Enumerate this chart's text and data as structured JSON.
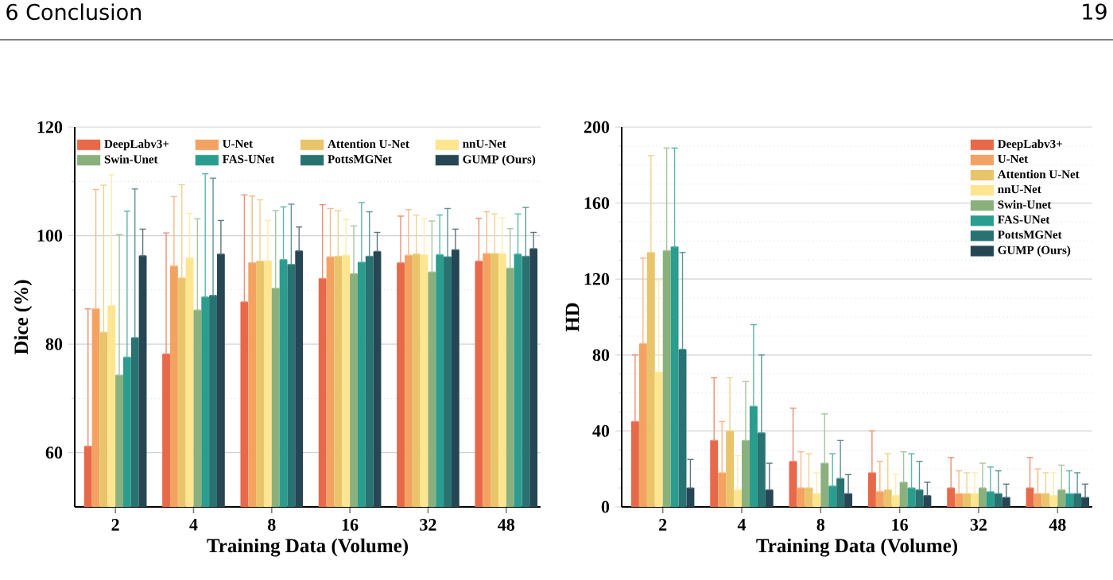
{
  "chart_data": [
    {
      "type": "bar",
      "xlabel": "Training Data (Volume)",
      "ylabel": "Dice (%)",
      "annotations": [
        "6 Conclusion",
        "19"
      ],
      "categories": [
        "2",
        "4",
        "8",
        "16",
        "32",
        "48"
      ],
      "ylim": [
        50,
        120
      ],
      "yticks": [
        60,
        80,
        100,
        120
      ],
      "grid": "y",
      "legend": "top",
      "series": [
        {
          "name": "DeepLabv3+",
          "color": "#e8684a",
          "values": [
            61.2,
            78.2,
            87.8,
            92.1,
            95.0,
            95.3
          ],
          "errors": [
            [
              61.2,
              86.5
            ],
            [
              78.2,
              100.5
            ],
            [
              87.8,
              107.5
            ],
            [
              92.1,
              105.7
            ],
            [
              95.0,
              103.6
            ],
            [
              95.3,
              103.2
            ]
          ]
        },
        {
          "name": "U-Net",
          "color": "#f4a261",
          "values": [
            86.5,
            94.4,
            95.0,
            96.1,
            96.4,
            96.7
          ],
          "errors": [
            [
              86.5,
              108.5
            ],
            [
              94.4,
              107.2
            ],
            [
              95.0,
              107.3
            ],
            [
              96.1,
              105.0
            ],
            [
              96.4,
              104.8
            ],
            [
              96.7,
              104.4
            ]
          ]
        },
        {
          "name": "Attention U-Net",
          "color": "#e9c46a",
          "values": [
            82.2,
            92.2,
            95.3,
            96.2,
            96.6,
            96.7
          ],
          "errors": [
            [
              82.2,
              109.3
            ],
            [
              92.2,
              109.4
            ],
            [
              95.3,
              106.6
            ],
            [
              96.2,
              104.6
            ],
            [
              96.6,
              103.8
            ],
            [
              96.7,
              104.0
            ]
          ]
        },
        {
          "name": "nnU-Net",
          "color": "#fee58f",
          "values": [
            87.1,
            95.9,
            95.4,
            96.4,
            96.5,
            96.7
          ],
          "errors": [
            [
              87.1,
              111.2
            ],
            [
              95.9,
              104.1
            ],
            [
              95.4,
              102.8
            ],
            [
              96.4,
              103.0
            ],
            [
              96.5,
              103.1
            ],
            [
              96.7,
              103.3
            ]
          ]
        },
        {
          "name": "Swin-Unet",
          "color": "#8ab17d",
          "values": [
            74.3,
            86.3,
            90.3,
            93.0,
            93.3,
            94.0
          ],
          "errors": [
            [
              74.3,
              100.2
            ],
            [
              86.3,
              103.1
            ],
            [
              90.3,
              104.6
            ],
            [
              93.0,
              101.8
            ],
            [
              93.3,
              102.7
            ],
            [
              94.0,
              101.3
            ]
          ]
        },
        {
          "name": "FAS-UNet",
          "color": "#2a9d8f",
          "values": [
            77.6,
            88.7,
            95.6,
            95.1,
            96.5,
            96.6
          ],
          "errors": [
            [
              77.6,
              104.5
            ],
            [
              88.7,
              111.4
            ],
            [
              95.6,
              105.3
            ],
            [
              95.1,
              106.1
            ],
            [
              96.5,
              103.8
            ],
            [
              96.6,
              104.0
            ]
          ]
        },
        {
          "name": "PottsMGNet",
          "color": "#287271",
          "values": [
            81.2,
            89.0,
            94.7,
            96.2,
            96.1,
            96.2
          ],
          "errors": [
            [
              81.2,
              108.6
            ],
            [
              89.0,
              110.6
            ],
            [
              94.7,
              105.8
            ],
            [
              96.2,
              104.4
            ],
            [
              96.1,
              105.0
            ],
            [
              96.2,
              105.2
            ]
          ]
        },
        {
          "name": "GUMP (Ours)",
          "color": "#264653",
          "values": [
            96.3,
            96.6,
            97.2,
            97.1,
            97.4,
            97.6
          ],
          "errors": [
            [
              96.3,
              101.2
            ],
            [
              96.6,
              102.8
            ],
            [
              97.2,
              101.6
            ],
            [
              97.1,
              100.6
            ],
            [
              97.4,
              101.2
            ],
            [
              97.6,
              100.6
            ]
          ]
        }
      ]
    },
    {
      "type": "bar",
      "xlabel": "Training Data (Volume)",
      "ylabel": "HD",
      "categories": [
        "2",
        "4",
        "8",
        "16",
        "32",
        "48"
      ],
      "ylim": [
        0,
        200
      ],
      "yticks": [
        0,
        40,
        80,
        120,
        160,
        200
      ],
      "grid": "y",
      "legend": "top right",
      "series": [
        {
          "name": "DeepLabv3+",
          "color": "#e8684a",
          "values": [
            45,
            35,
            24,
            18,
            10,
            10
          ],
          "errors": [
            [
              45,
              80
            ],
            [
              35,
              68
            ],
            [
              24,
              52
            ],
            [
              18,
              40
            ],
            [
              10,
              26
            ],
            [
              10,
              26
            ]
          ]
        },
        {
          "name": "U-Net",
          "color": "#f4a261",
          "values": [
            86,
            18,
            10,
            8,
            7,
            7
          ],
          "errors": [
            [
              86,
              131
            ],
            [
              18,
              45
            ],
            [
              10,
              29
            ],
            [
              8,
              24
            ],
            [
              7,
              19
            ],
            [
              7,
              20
            ]
          ]
        },
        {
          "name": "Attention U-Net",
          "color": "#e9c46a",
          "values": [
            134,
            40,
            10,
            9,
            7,
            7
          ],
          "errors": [
            [
              134,
              185
            ],
            [
              40,
              68
            ],
            [
              10,
              28
            ],
            [
              9,
              28
            ],
            [
              7,
              18
            ],
            [
              7,
              18
            ]
          ]
        },
        {
          "name": "nnU-Net",
          "color": "#fee58f",
          "values": [
            71,
            9,
            7,
            6,
            7,
            6
          ],
          "errors": [
            [
              71,
              119
            ],
            [
              9,
              27
            ],
            [
              7,
              18
            ],
            [
              6,
              17
            ],
            [
              7,
              18
            ],
            [
              6,
              18
            ]
          ]
        },
        {
          "name": "Swin-Unet",
          "color": "#8ab17d",
          "values": [
            135,
            35,
            23,
            13,
            10,
            9
          ],
          "errors": [
            [
              135,
              189
            ],
            [
              35,
              66
            ],
            [
              23,
              49
            ],
            [
              13,
              29
            ],
            [
              10,
              23
            ],
            [
              9,
              22
            ]
          ]
        },
        {
          "name": "FAS-UNet",
          "color": "#2a9d8f",
          "values": [
            137,
            53,
            11,
            10,
            8,
            7
          ],
          "errors": [
            [
              137,
              189
            ],
            [
              53,
              96
            ],
            [
              11,
              28
            ],
            [
              10,
              28
            ],
            [
              8,
              21
            ],
            [
              7,
              19
            ]
          ]
        },
        {
          "name": "PottsMGNet",
          "color": "#287271",
          "values": [
            83,
            39,
            15,
            9,
            7,
            7
          ],
          "errors": [
            [
              83,
              134
            ],
            [
              39,
              80
            ],
            [
              15,
              35
            ],
            [
              9,
              24
            ],
            [
              7,
              19
            ],
            [
              7,
              18
            ]
          ]
        },
        {
          "name": "GUMP (Ours)",
          "color": "#264653",
          "values": [
            10,
            9,
            7,
            6,
            5,
            5
          ],
          "errors": [
            [
              10,
              25
            ],
            [
              9,
              23
            ],
            [
              7,
              17
            ],
            [
              6,
              13
            ],
            [
              5,
              12
            ],
            [
              5,
              12
            ]
          ]
        }
      ]
    }
  ]
}
